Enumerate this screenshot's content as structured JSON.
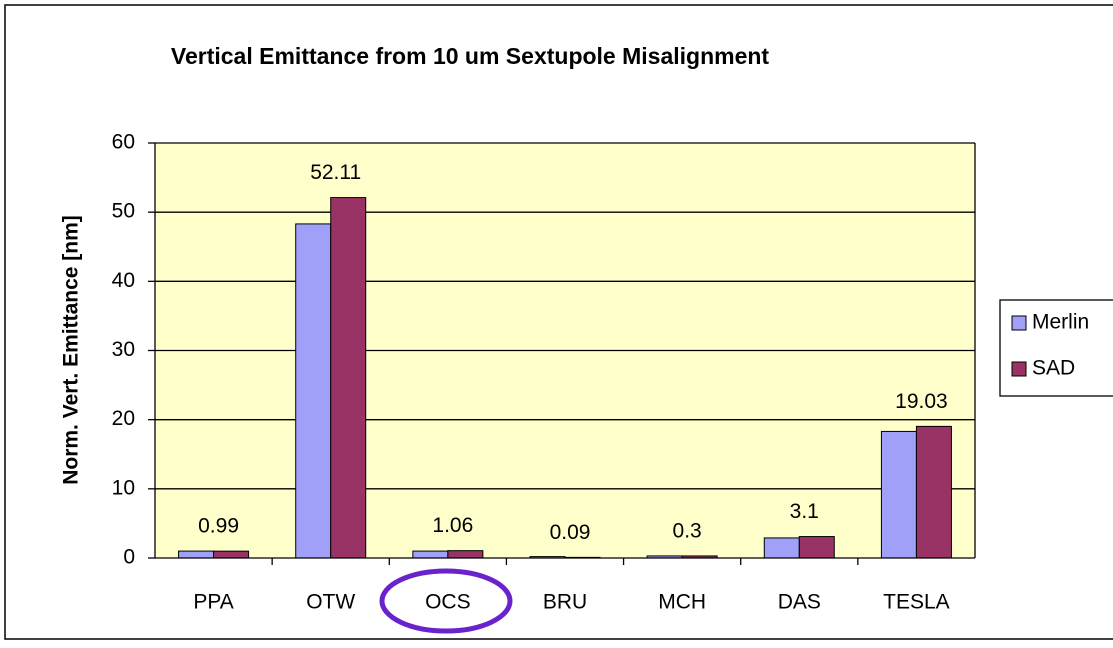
{
  "chart_data": {
    "type": "bar",
    "title": "Vertical Emittance from 10 um Sextupole Misalignment",
    "y_label": "Norm. Vert. Emittance [nm]",
    "categories": [
      "PPA",
      "OTW",
      "OCS",
      "BRU",
      "MCH",
      "DAS",
      "TESLA"
    ],
    "series": [
      {
        "name": "Merlin",
        "color": "#a0a0f8",
        "values": [
          1.0,
          48.3,
          1.0,
          0.2,
          0.3,
          2.9,
          18.3
        ],
        "labels": false
      },
      {
        "name": "SAD",
        "color": "#993366",
        "values": [
          0.99,
          52.11,
          1.06,
          0.09,
          0.3,
          3.1,
          19.03
        ],
        "labels": true
      }
    ],
    "ylim": [
      0,
      60
    ],
    "yticks": [
      0,
      10,
      20,
      30,
      40,
      50,
      60
    ],
    "grid": true,
    "legend": "right",
    "plot_background": "#ffffcc"
  }
}
